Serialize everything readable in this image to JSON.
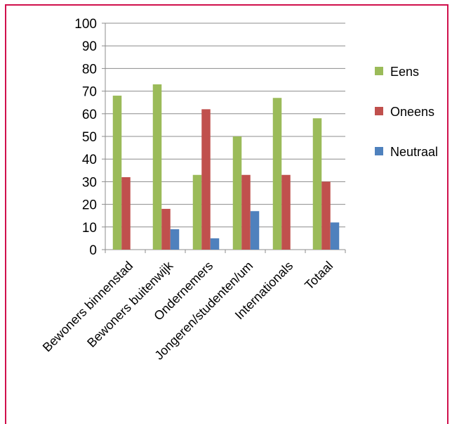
{
  "chart_data": {
    "type": "bar",
    "title": "",
    "xlabel": "",
    "ylabel": "",
    "ylim": [
      0,
      100
    ],
    "yticks": [
      0,
      10,
      20,
      30,
      40,
      50,
      60,
      70,
      80,
      90,
      100
    ],
    "grid": true,
    "legend_position": "right",
    "categories": [
      "Bewoners binnenstad",
      "Bewoners buitenwijk",
      "Ondernemers",
      "Jongeren/studenten/um",
      "Internationals",
      "Totaal"
    ],
    "series": [
      {
        "name": "Eens",
        "color": "#9bbb59",
        "values": [
          68,
          73,
          33,
          50,
          67,
          58
        ]
      },
      {
        "name": "Oneens",
        "color": "#c0504d",
        "values": [
          32,
          18,
          62,
          33,
          33,
          30
        ]
      },
      {
        "name": "Neutraal",
        "color": "#4f81bd",
        "values": [
          0,
          9,
          5,
          17,
          0,
          12
        ]
      }
    ]
  }
}
